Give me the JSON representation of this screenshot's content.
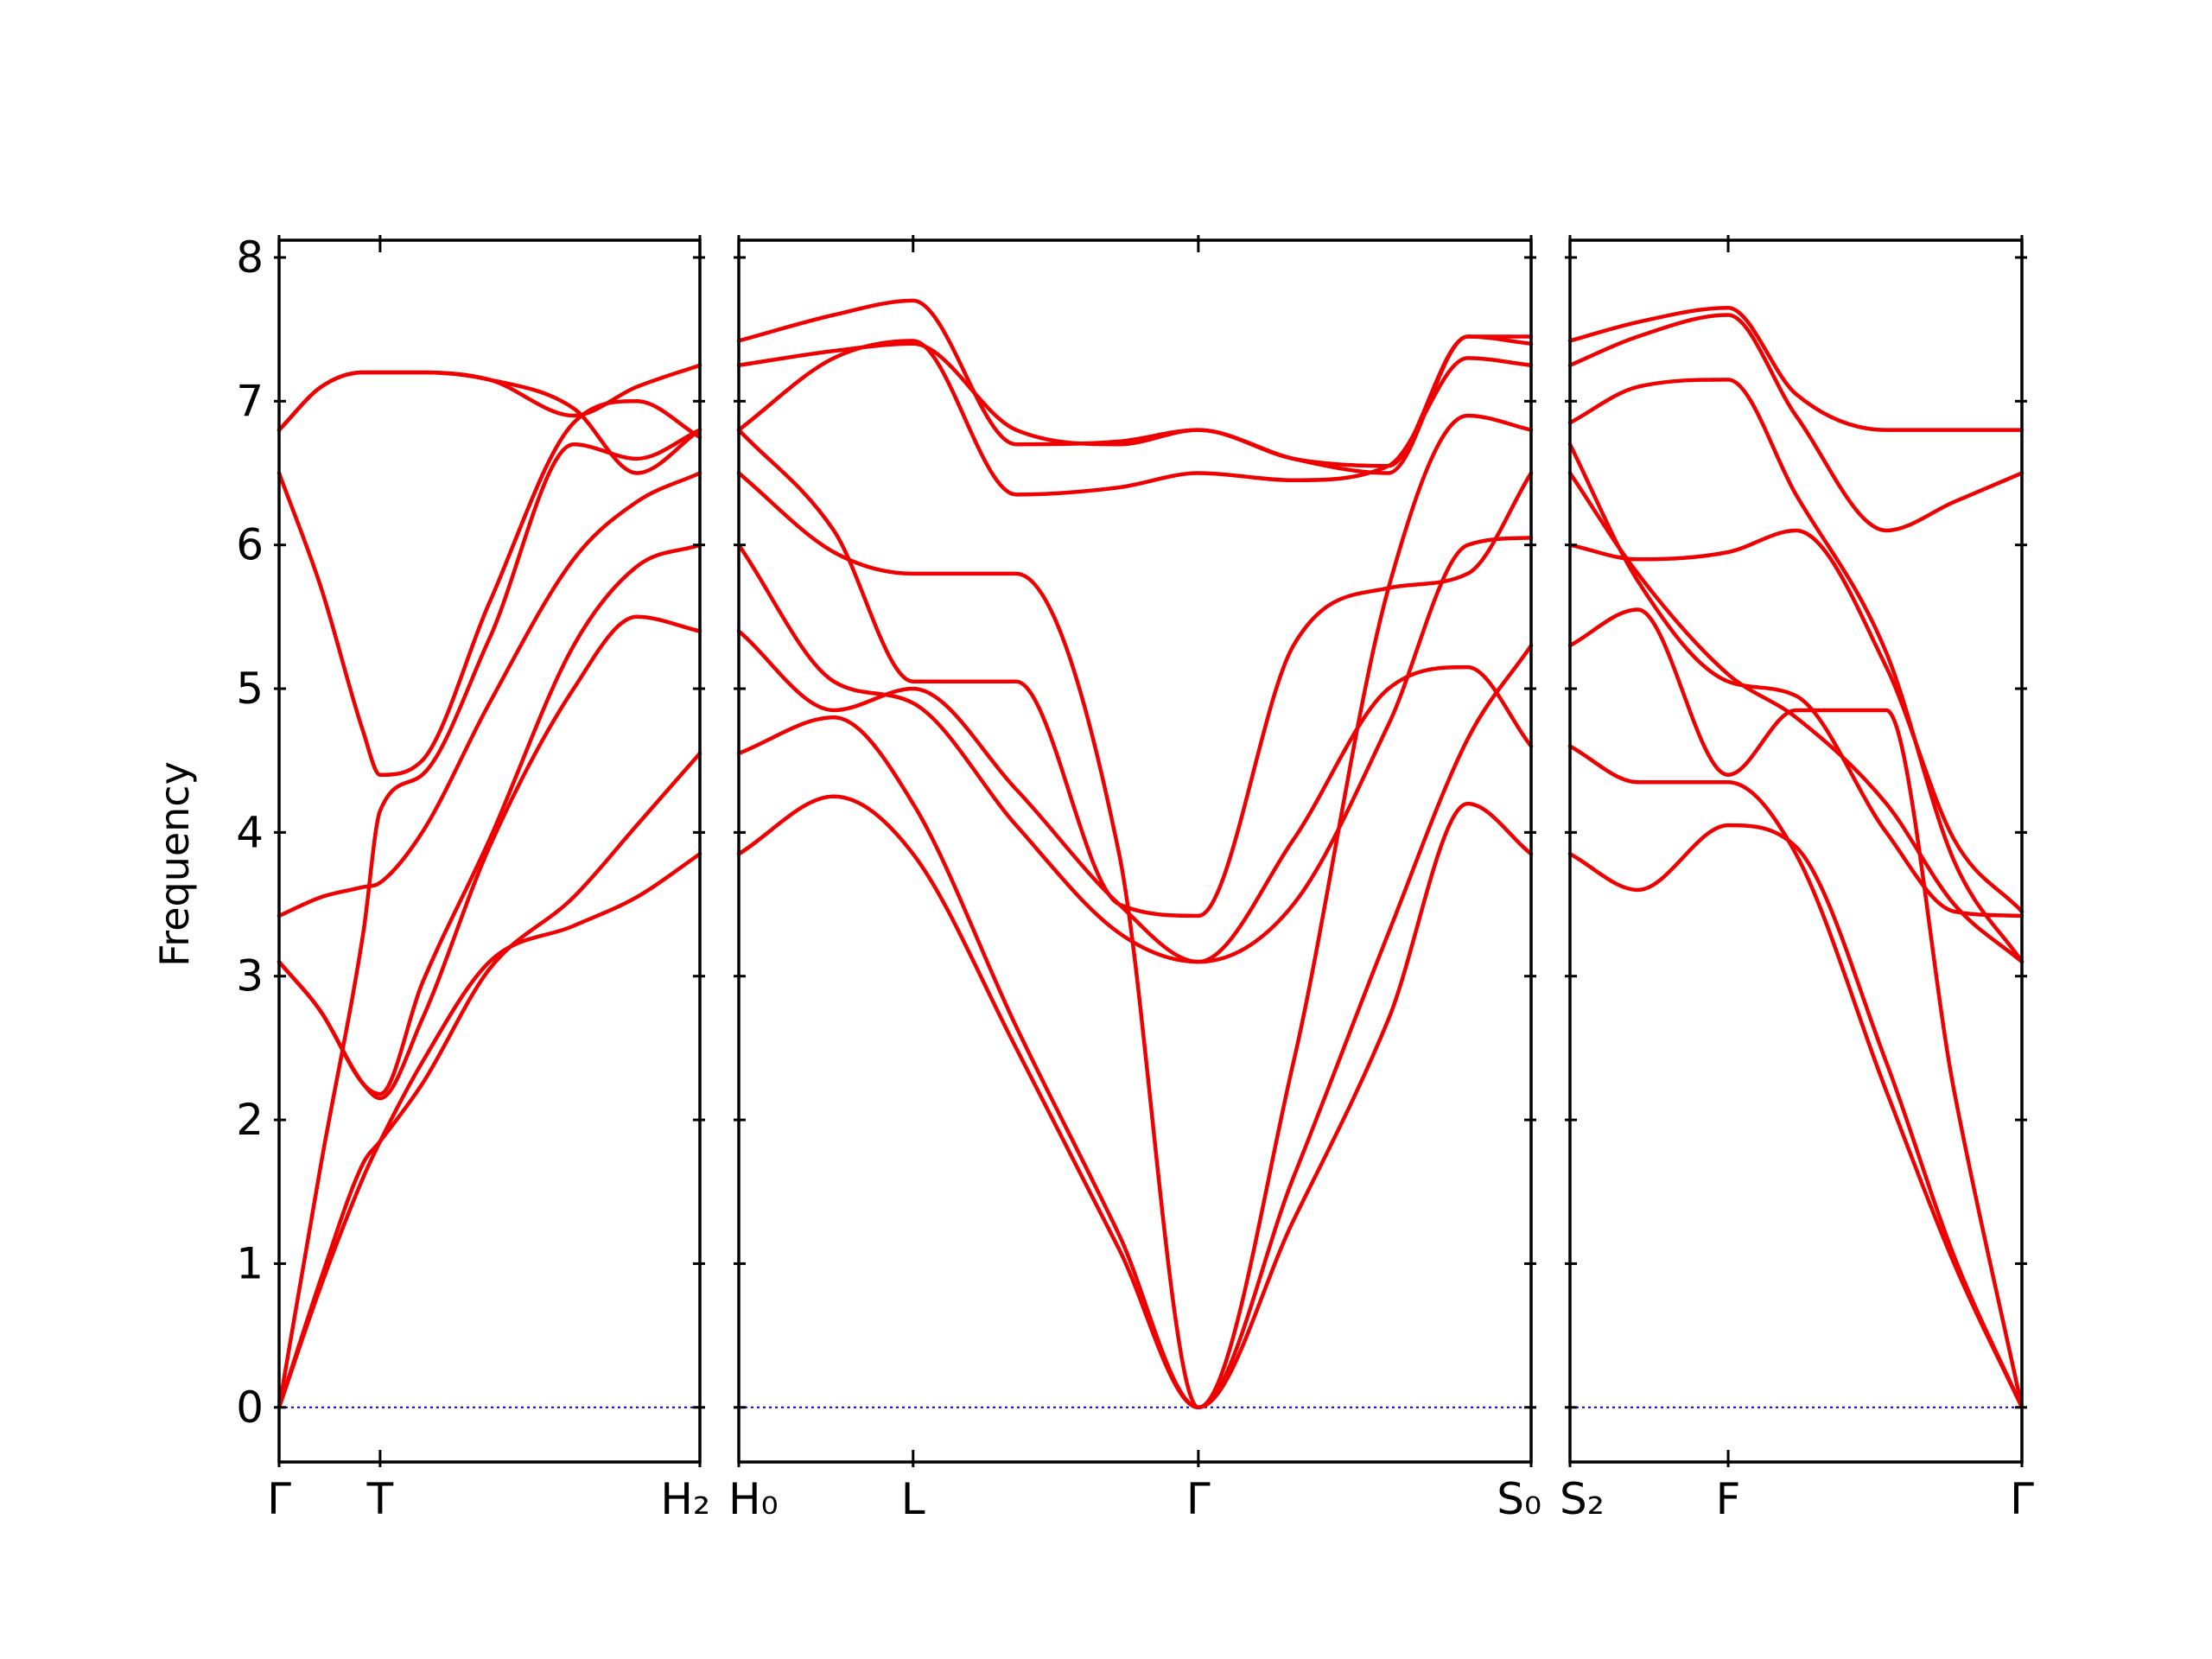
{
  "chart_data": {
    "type": "line",
    "title": "",
    "ylabel": "Frequency",
    "ylim": [
      -0.38,
      8.12
    ],
    "yticks": [
      "0",
      "1",
      "2",
      "3",
      "4",
      "5",
      "6",
      "7",
      "8"
    ],
    "grid": false,
    "legend": "none",
    "colors": {
      "bands": "#ee0000",
      "zero_line": "#0000cc"
    },
    "segments": [
      {
        "xlim": [
          0,
          1
        ],
        "ticks": [
          {
            "x": 0,
            "label": "Γ"
          },
          {
            "x": 0.24,
            "label": "T"
          },
          {
            "x": 1,
            "label": "H₂"
          }
        ],
        "bands": [
          {
            "x": [
              0,
              0.1,
              0.2,
              0.24,
              0.34,
              0.5,
              0.7,
              0.85,
              1
            ],
            "y": [
              0,
              0.85,
              1.6,
              1.85,
              2.4,
              3.1,
              3.35,
              3.55,
              3.85
            ]
          },
          {
            "x": [
              0,
              0.1,
              0.2,
              0.24,
              0.34,
              0.5,
              0.7,
              0.85,
              1
            ],
            "y": [
              0,
              0.9,
              1.7,
              1.85,
              2.25,
              3.05,
              3.55,
              4.05,
              4.55
            ]
          },
          {
            "x": [
              0,
              0.1,
              0.2,
              0.24,
              0.34,
              0.5,
              0.7,
              0.85,
              1
            ],
            "y": [
              0,
              1.7,
              3.3,
              4.15,
              4.4,
              5.35,
              6.7,
              6.6,
              6.8
            ]
          },
          {
            "x": [
              0,
              0.1,
              0.2,
              0.24,
              0.34,
              0.5,
              0.7,
              0.85,
              1
            ],
            "y": [
              3.1,
              2.75,
              2.25,
              2.15,
              2.7,
              3.9,
              5.0,
              5.5,
              5.4
            ]
          },
          {
            "x": [
              0,
              0.1,
              0.2,
              0.24,
              0.34,
              0.5,
              0.7,
              0.85,
              1
            ],
            "y": [
              3.1,
              2.75,
              2.25,
              2.18,
              2.95,
              3.95,
              5.3,
              5.85,
              6.0
            ]
          },
          {
            "x": [
              0,
              0.1,
              0.2,
              0.24,
              0.34,
              0.5,
              0.7,
              0.85,
              1
            ],
            "y": [
              3.42,
              3.55,
              3.62,
              3.65,
              4.0,
              4.9,
              5.9,
              6.3,
              6.5
            ]
          },
          {
            "x": [
              0,
              0.1,
              0.2,
              0.24,
              0.34,
              0.5,
              0.7,
              0.85,
              1
            ],
            "y": [
              6.5,
              5.7,
              4.7,
              4.4,
              4.5,
              5.6,
              6.85,
              7.0,
              6.75
            ]
          },
          {
            "x": [
              0,
              0.1,
              0.2,
              0.24,
              0.34,
              0.5,
              0.7,
              0.85,
              1
            ],
            "y": [
              6.8,
              7.1,
              7.2,
              7.2,
              7.2,
              7.15,
              6.95,
              6.5,
              6.8
            ]
          },
          {
            "x": [
              0,
              0.1,
              0.2,
              0.24,
              0.34,
              0.5,
              0.7,
              0.85,
              1
            ],
            "y": [
              6.8,
              7.1,
              7.2,
              7.2,
              7.2,
              7.15,
              6.9,
              7.1,
              7.25
            ]
          }
        ]
      },
      {
        "xlim": [
          0,
          1
        ],
        "ticks": [
          {
            "x": 0,
            "label": "H₀"
          },
          {
            "x": 0.22,
            "label": "L"
          },
          {
            "x": 0.58,
            "label": "Γ"
          },
          {
            "x": 1,
            "label": "S₀"
          }
        ],
        "bands": [
          {
            "x": [
              0,
              0.12,
              0.22,
              0.35,
              0.48,
              0.58,
              0.7,
              0.82,
              0.92,
              1
            ],
            "y": [
              3.85,
              4.25,
              3.85,
              2.5,
              1.1,
              0,
              1.3,
              2.7,
              4.2,
              3.85
            ]
          },
          {
            "x": [
              0,
              0.12,
              0.22,
              0.35,
              0.48,
              0.58,
              0.7,
              0.82,
              0.92,
              1
            ],
            "y": [
              4.55,
              4.8,
              4.2,
              2.65,
              1.2,
              0,
              1.6,
              3.3,
              4.65,
              5.3
            ]
          },
          {
            "x": [
              0,
              0.12,
              0.22,
              0.35,
              0.48,
              0.58,
              0.7,
              0.82,
              0.92,
              1
            ],
            "y": [
              5.4,
              4.85,
              5.0,
              4.3,
              3.5,
              3.1,
              3.95,
              5.0,
              5.15,
              4.6
            ]
          },
          {
            "x": [
              0,
              0.12,
              0.22,
              0.35,
              0.48,
              0.58,
              0.7,
              0.82,
              0.92,
              1
            ],
            "y": [
              6.0,
              5.05,
              4.9,
              4.05,
              3.3,
              3.1,
              3.5,
              4.75,
              6.0,
              6.05
            ]
          },
          {
            "x": [
              0,
              0.12,
              0.22,
              0.35,
              0.48,
              0.58,
              0.7,
              0.82,
              0.92,
              1
            ],
            "y": [
              6.5,
              5.95,
              5.8,
              5.8,
              3.85,
              0,
              2.4,
              5.7,
              6.9,
              6.8
            ]
          },
          {
            "x": [
              0,
              0.12,
              0.22,
              0.35,
              0.48,
              0.58,
              0.7,
              0.82,
              0.92,
              1
            ],
            "y": [
              6.8,
              6.1,
              5.05,
              5.05,
              3.5,
              3.42,
              5.3,
              5.7,
              5.8,
              6.5
            ]
          },
          {
            "x": [
              0,
              0.12,
              0.22,
              0.35,
              0.48,
              0.58,
              0.7,
              0.82,
              0.92,
              1
            ],
            "y": [
              6.8,
              7.3,
              7.42,
              6.35,
              6.4,
              6.5,
              6.45,
              6.55,
              7.3,
              7.25
            ]
          },
          {
            "x": [
              0,
              0.12,
              0.22,
              0.35,
              0.48,
              0.58,
              0.7,
              0.82,
              0.92,
              1
            ],
            "y": [
              7.25,
              7.35,
              7.4,
              6.8,
              6.7,
              6.8,
              6.6,
              6.5,
              7.45,
              7.4
            ]
          },
          {
            "x": [
              0,
              0.12,
              0.22,
              0.35,
              0.48,
              0.58,
              0.7,
              0.82,
              0.92,
              1
            ],
            "y": [
              7.42,
              7.6,
              7.7,
              6.7,
              6.72,
              6.8,
              6.6,
              6.55,
              7.45,
              7.45
            ]
          }
        ]
      },
      {
        "xlim": [
          0,
          1
        ],
        "ticks": [
          {
            "x": 0,
            "label": "S₂"
          },
          {
            "x": 0.35,
            "label": "F"
          },
          {
            "x": 1,
            "label": "Γ"
          }
        ],
        "bands": [
          {
            "x": [
              0,
              0.15,
              0.35,
              0.5,
              0.7,
              0.85,
              1
            ],
            "y": [
              3.85,
              3.6,
              4.05,
              3.9,
              2.4,
              1.05,
              0
            ]
          },
          {
            "x": [
              0,
              0.15,
              0.35,
              0.5,
              0.7,
              0.85,
              1
            ],
            "y": [
              4.6,
              4.35,
              4.35,
              3.85,
              2.2,
              1.0,
              0
            ]
          },
          {
            "x": [
              0,
              0.15,
              0.35,
              0.5,
              0.7,
              0.85,
              1
            ],
            "y": [
              5.3,
              5.55,
              4.4,
              4.85,
              4.85,
              2.2,
              0
            ]
          },
          {
            "x": [
              0,
              0.15,
              0.35,
              0.5,
              0.7,
              0.85,
              1
            ],
            "y": [
              6.0,
              5.9,
              5.95,
              6.1,
              5.15,
              3.95,
              3.45
            ]
          },
          {
            "x": [
              0,
              0.15,
              0.35,
              0.5,
              0.7,
              0.85,
              1
            ],
            "y": [
              6.5,
              5.8,
              5.1,
              4.8,
              4.2,
              3.5,
              3.1
            ]
          },
          {
            "x": [
              0,
              0.15,
              0.35,
              0.5,
              0.7,
              0.85,
              1
            ],
            "y": [
              6.7,
              5.75,
              5.05,
              4.95,
              4.0,
              3.45,
              3.42
            ]
          },
          {
            "x": [
              0,
              0.15,
              0.35,
              0.5,
              0.7,
              0.85,
              1
            ],
            "y": [
              6.85,
              7.1,
              7.15,
              6.35,
              5.25,
              3.8,
              3.1
            ]
          },
          {
            "x": [
              0,
              0.15,
              0.35,
              0.5,
              0.7,
              0.85,
              1
            ],
            "y": [
              7.25,
              7.45,
              7.6,
              6.9,
              6.1,
              6.3,
              6.5
            ]
          },
          {
            "x": [
              0,
              0.15,
              0.35,
              0.5,
              0.7,
              0.85,
              1
            ],
            "y": [
              7.42,
              7.55,
              7.65,
              7.05,
              6.8,
              6.8,
              6.8
            ]
          }
        ]
      }
    ]
  }
}
